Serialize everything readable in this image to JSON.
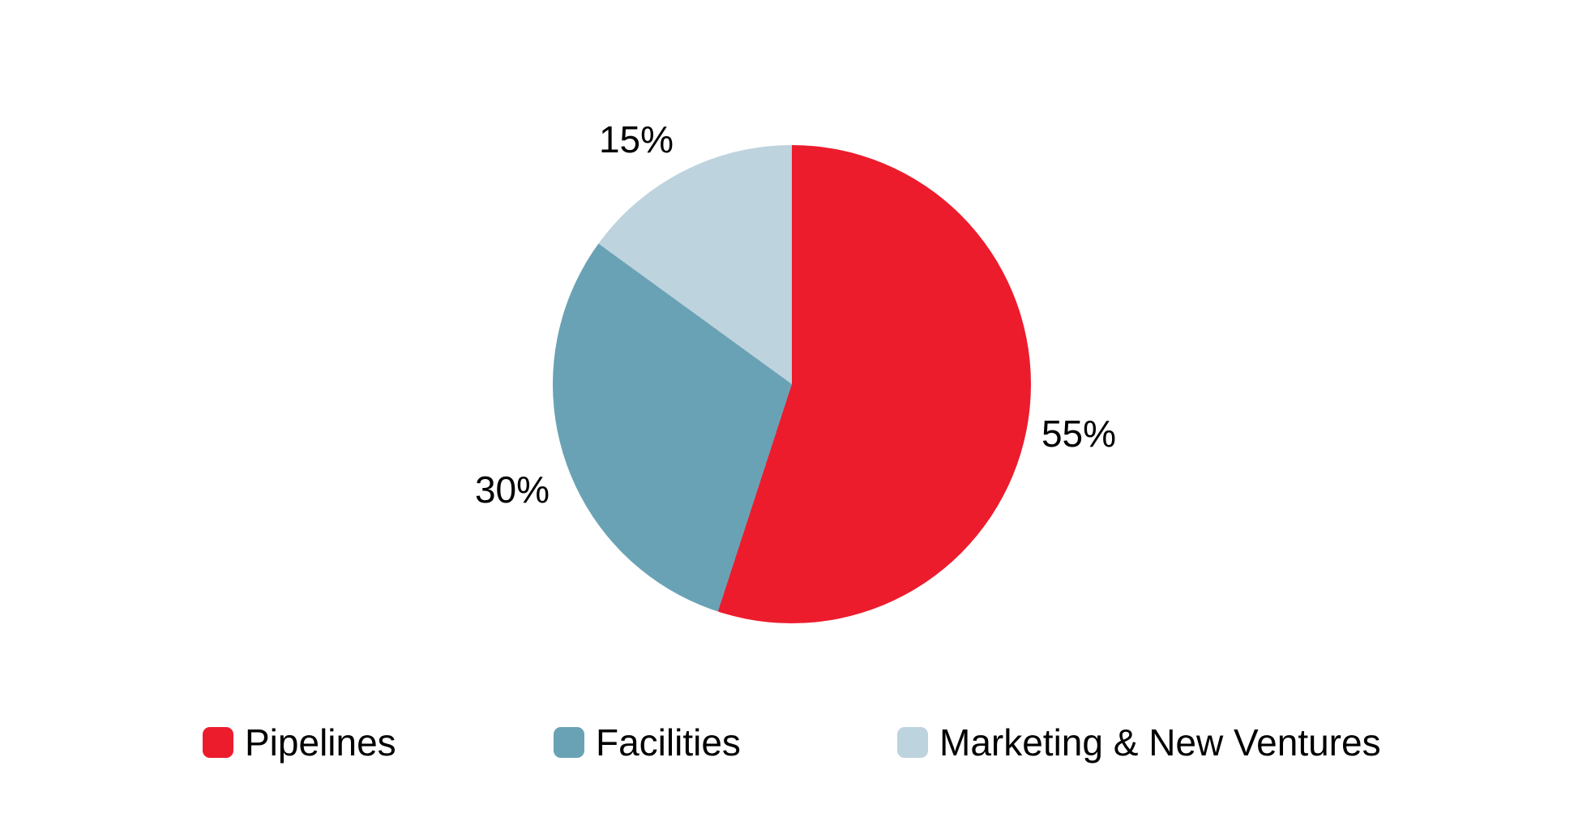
{
  "chart_data": {
    "type": "pie",
    "title": "",
    "categories": [
      "Pipelines",
      "Facilities",
      "Marketing & New Ventures"
    ],
    "values": [
      55,
      30,
      15
    ],
    "unit": "percent",
    "start_angle_deg": 0,
    "direction": "clockwise",
    "legend_position": "bottom",
    "background_color": "#FFFFFF",
    "label_color": "#000000",
    "slices": [
      {
        "category": "Pipelines",
        "value": 55,
        "label": "55%",
        "color": "#EC1C2D"
      },
      {
        "category": "Facilities",
        "value": 30,
        "label": "30%",
        "color": "#6AA2B5"
      },
      {
        "category": "Marketing & New Ventures",
        "value": 15,
        "label": "15%",
        "color": "#BDD3DE"
      }
    ]
  }
}
